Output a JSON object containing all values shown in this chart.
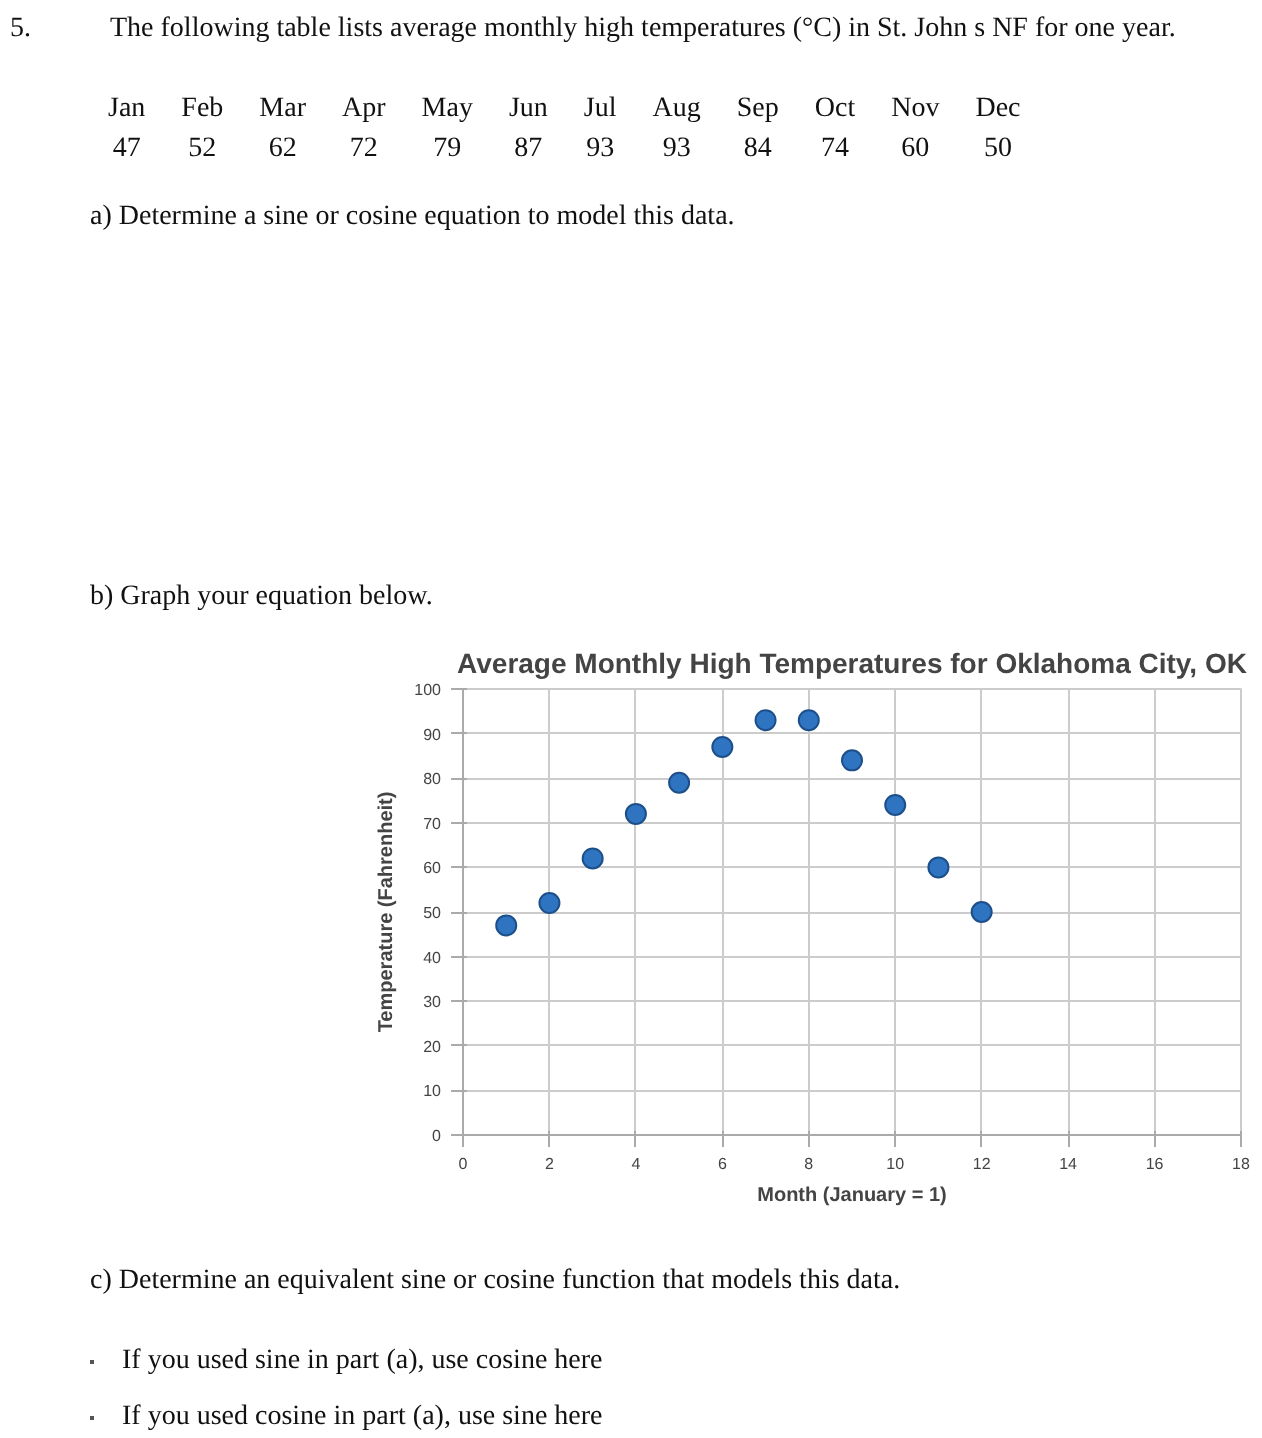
{
  "chart_data": {
    "type": "scatter",
    "title": "Average Monthly High Temperatures for Oklahoma City, OK",
    "xlabel": "Month (January = 1)",
    "ylabel": "Temperature (Fahrenheit)",
    "x": [
      1,
      2,
      3,
      4,
      5,
      6,
      7,
      8,
      9,
      10,
      11,
      12
    ],
    "series": [
      {
        "color": "#2f74c0",
        "values": [
          47,
          52,
          62,
          72,
          79,
          87,
          93,
          93,
          84,
          74,
          60,
          50
        ]
      }
    ],
    "xlim": [
      0,
      18
    ],
    "xticks": [
      0,
      2,
      4,
      6,
      8,
      10,
      12,
      14,
      16,
      18
    ],
    "ylim": [
      0,
      100
    ],
    "yticks": [
      0,
      10,
      20,
      30,
      40,
      50,
      60,
      70,
      80,
      90,
      100
    ],
    "grid": true,
    "marker": "circle",
    "annotations": [
      "5.",
      "The following table lists average monthly high temperatures (°C) in St. John s NF for one year.",
      "Jan",
      "Feb",
      "Mar",
      "Apr",
      "May",
      "Jun",
      "Jul",
      "Aug",
      "Sep",
      "Oct",
      "Nov",
      "Dec",
      "47",
      "52",
      "62",
      "72",
      "79",
      "87",
      "93",
      "93",
      "84",
      "74",
      "60",
      "50",
      "a) Determine a sine or cosine equation to model this data.",
      "b) Graph your equation below.",
      "c) Determine an equivalent sine or cosine function that models this data.",
      "If you used sine in part (a), use cosine here",
      "If you used cosine in part (a), use sine here"
    ]
  }
}
